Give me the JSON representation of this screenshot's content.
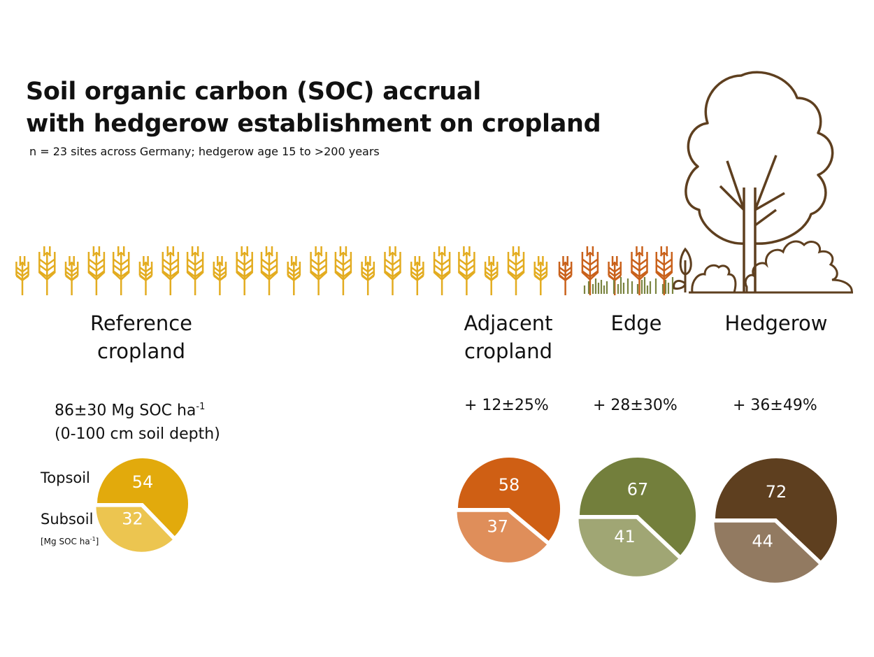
{
  "title_line1": "Soil organic carbon (SOC) accrual",
  "title_line2": "with hedgerow establishment on cropland",
  "subtitle": "n = 23 sites across Germany; hedgerow age 15 to >200 years",
  "zones": {
    "reference": {
      "line1": "Reference",
      "line2": "cropland"
    },
    "adjacent": {
      "line1": "Adjacent",
      "line2": "cropland"
    },
    "edge": {
      "line1": "Edge"
    },
    "hedgerow": {
      "line1": "Hedgerow"
    }
  },
  "reference_stock": {
    "main": "86±30 Mg SOC ha",
    "sup": "-1",
    "depth": "(0-100 cm soil depth)"
  },
  "changes": {
    "adjacent": "+ 12±25%",
    "edge": "+ 28±30%",
    "hedgerow": "+ 36±49%"
  },
  "legend": {
    "topsoil": "Topsoil",
    "subsoil": "Subsoil",
    "unit_main": "[Mg SOC ha",
    "unit_sup": "-1",
    "unit_end": "]"
  },
  "colors": {
    "wheat": "#e3ac20",
    "wheat_adjacent": "#c9611b",
    "grass": "#7a8440",
    "tree": "#5e3f1f"
  },
  "chart_data": {
    "type": "pie",
    "unit": "Mg SOC ha-1",
    "pies": [
      {
        "name": "Reference cropland",
        "topsoil": 54,
        "subsoil": 32,
        "colors": [
          "#e2aa0c",
          "#ecc550"
        ]
      },
      {
        "name": "Adjacent cropland",
        "topsoil": 58,
        "subsoil": 37,
        "colors": [
          "#cf5f14",
          "#df8e5a"
        ]
      },
      {
        "name": "Edge",
        "topsoil": 67,
        "subsoil": 41,
        "colors": [
          "#737f3c",
          "#a0a674"
        ]
      },
      {
        "name": "Hedgerow",
        "topsoil": 72,
        "subsoil": 44,
        "colors": [
          "#5e3f1f",
          "#927a61"
        ]
      }
    ]
  }
}
